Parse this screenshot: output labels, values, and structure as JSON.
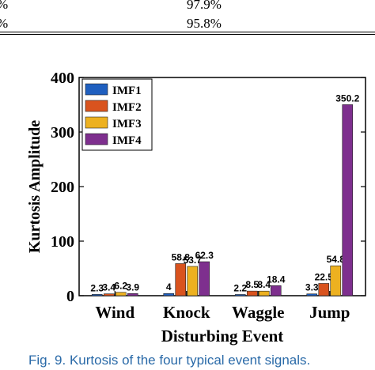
{
  "table_fragment": {
    "rows": [
      {
        "left": "%",
        "value": "97.9%"
      },
      {
        "left": "%",
        "value": "95.8%"
      }
    ]
  },
  "chart_data": {
    "type": "bar",
    "categories": [
      "Wind",
      "Knock",
      "Waggle",
      "Jump"
    ],
    "series": [
      {
        "name": "IMF1",
        "color": "#1f5fbf",
        "values": [
          2.3,
          4,
          2.2,
          3.3
        ],
        "labels": [
          "2.3",
          "4",
          "2.2",
          "3.3"
        ]
      },
      {
        "name": "IMF2",
        "color": "#d9531e",
        "values": [
          3.4,
          58.8,
          8.5,
          22.5
        ],
        "labels": [
          "3.4",
          "58.8",
          "8.5",
          "22.5"
        ]
      },
      {
        "name": "IMF3",
        "color": "#edb120",
        "values": [
          6.2,
          53.7,
          8.4,
          54.8
        ],
        "labels": [
          "6.2",
          "53.7",
          "8.4",
          "54.8"
        ]
      },
      {
        "name": "IMF4",
        "color": "#7e2f8e",
        "values": [
          3.9,
          62.3,
          18.4,
          350.2
        ],
        "labels": [
          "3.9",
          "62.3",
          "18.4",
          "350.2"
        ]
      }
    ],
    "xlabel": "Disturbing Event",
    "ylabel": "Kurtosis Amplitude",
    "ylim": [
      0,
      400
    ],
    "yticks": [
      0,
      100,
      200,
      300,
      400
    ],
    "legend_position": "top-left",
    "grid": false
  },
  "caption": "Fig. 9.  Kurtosis of the four typical event signals."
}
